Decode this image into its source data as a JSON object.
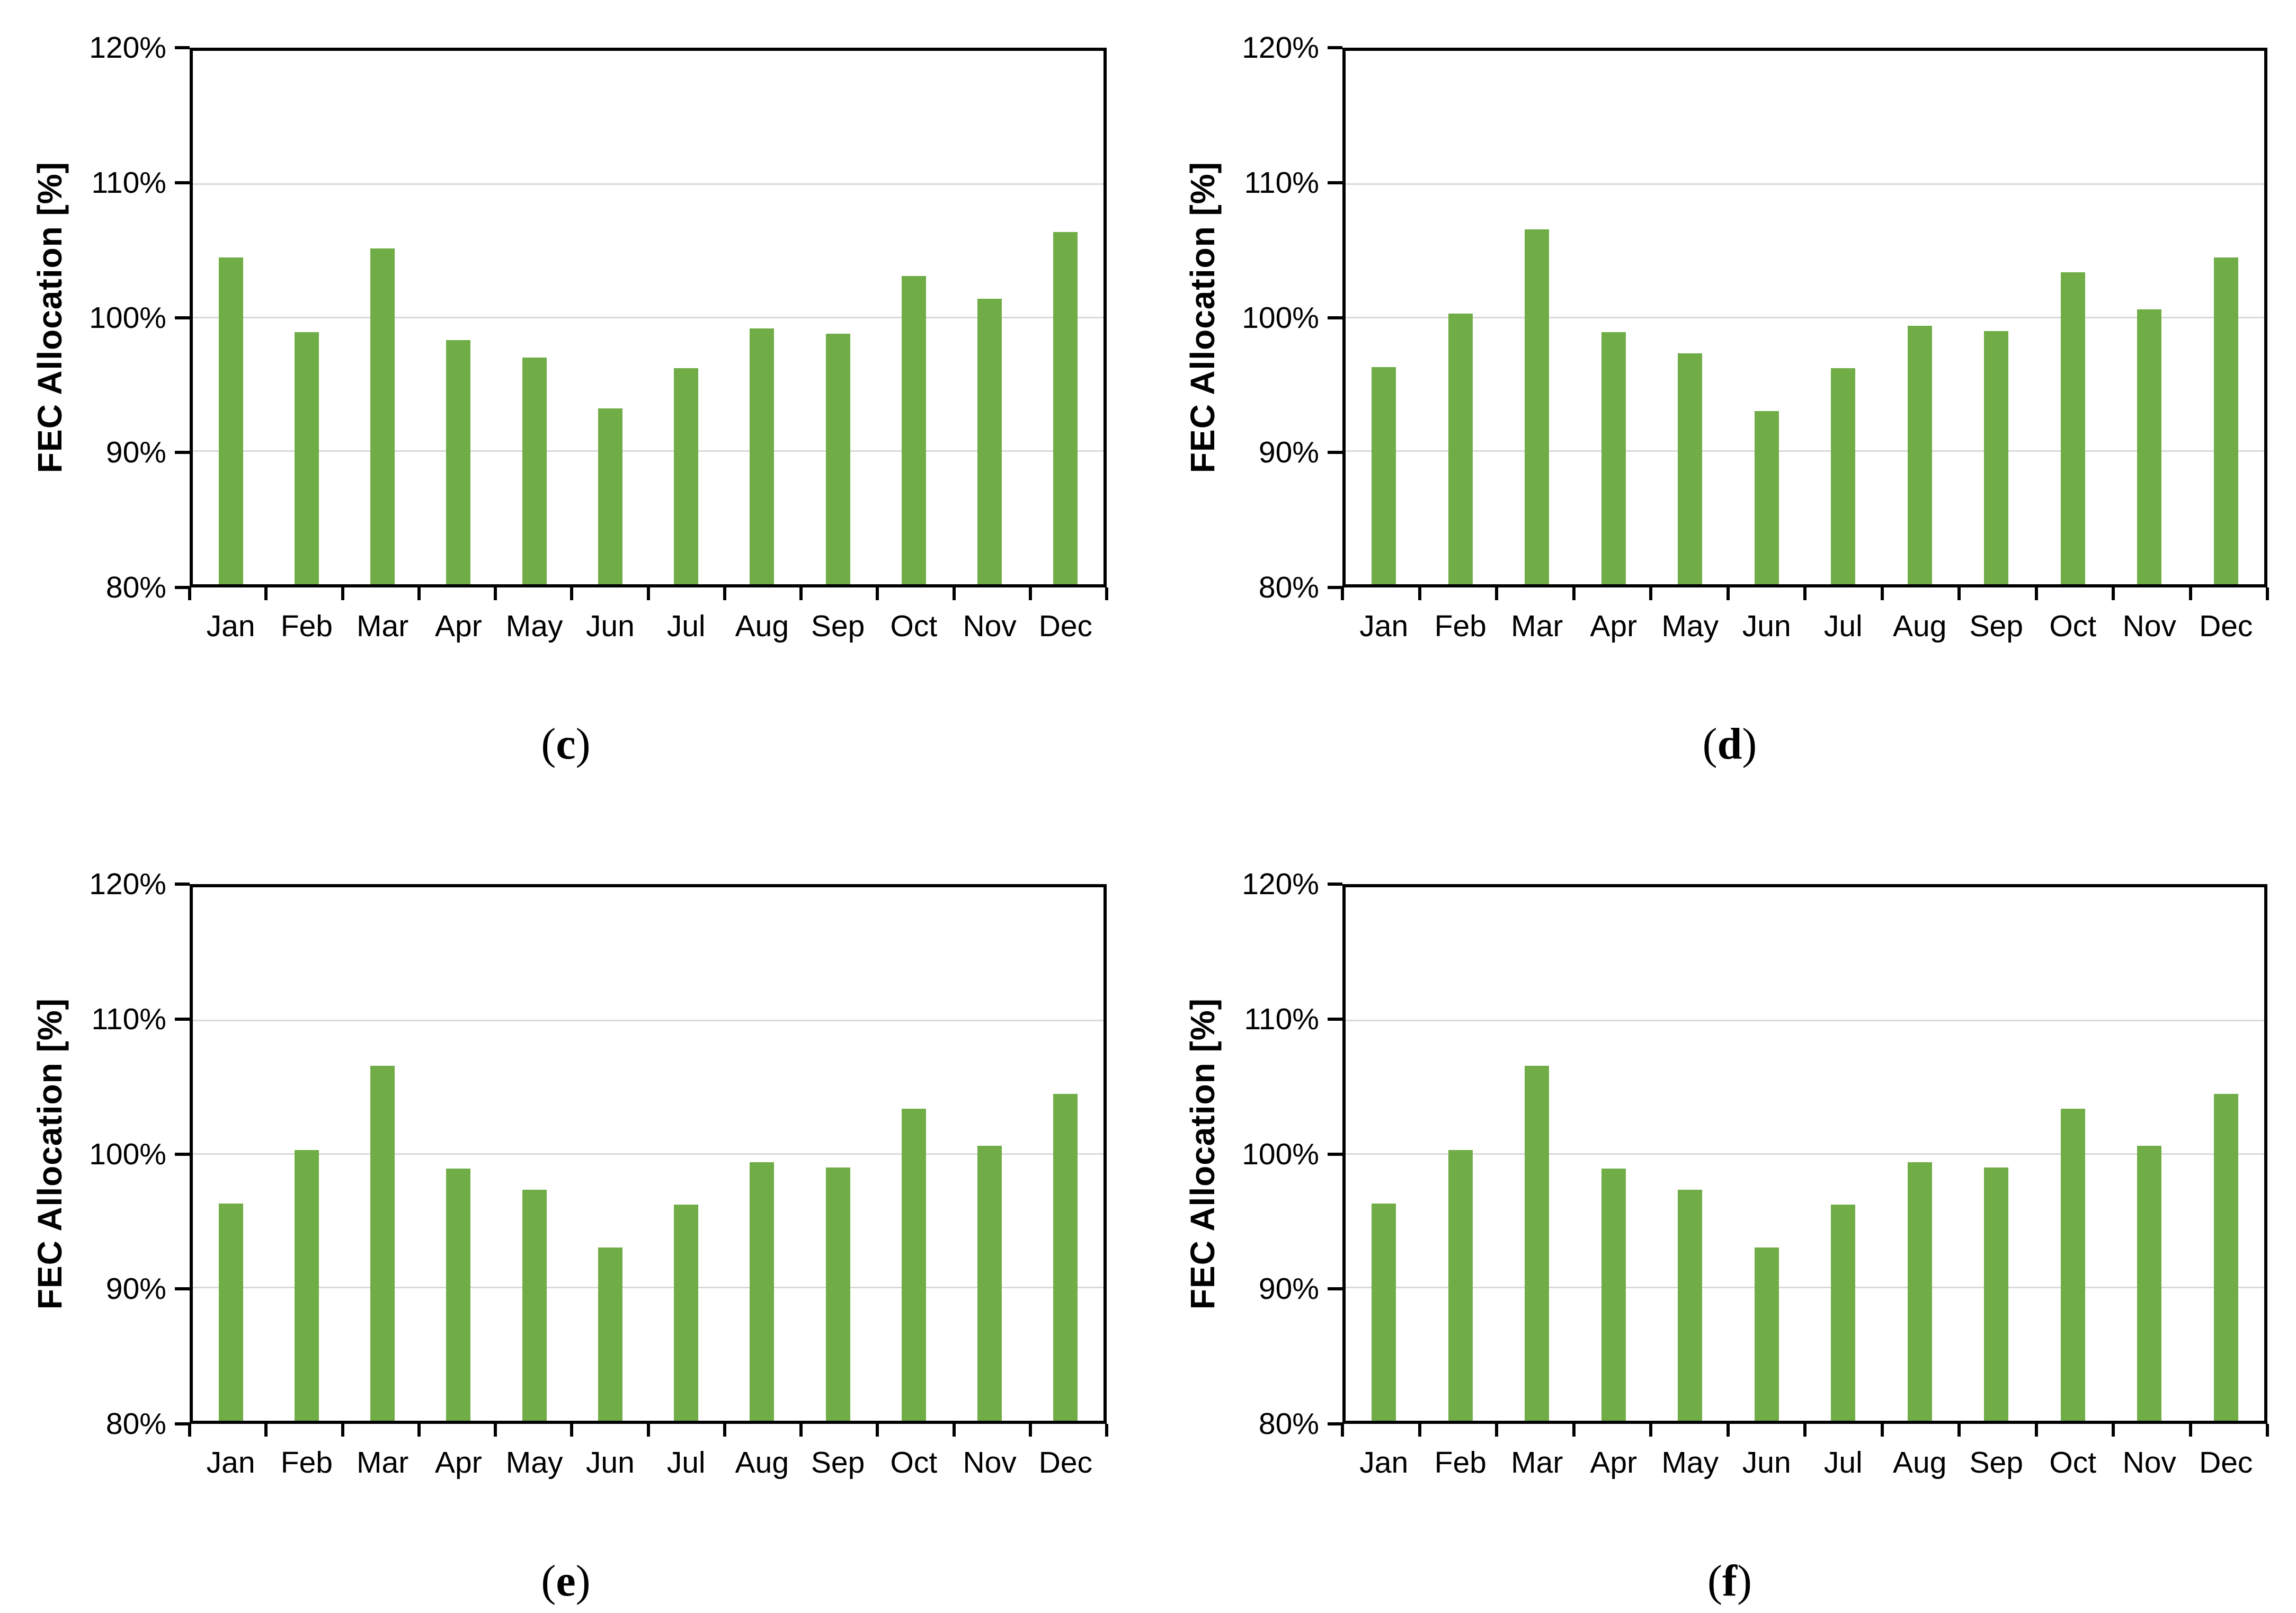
{
  "figure": {
    "background": "#ffffff",
    "bar_color": "#70AD47",
    "gridline_color": "#D9D9D9",
    "axis_color": "#000000",
    "text_color": "#000000"
  },
  "chart_data": [
    {
      "id": "c",
      "type": "bar",
      "panel_label": "(c)",
      "label_open": "(",
      "letter": "c",
      "label_close": ")",
      "title": "",
      "xlabel": "",
      "ylabel": "FEC Allocation [%]",
      "categories": [
        "Jan",
        "Feb",
        "Mar",
        "Apr",
        "May",
        "Jun",
        "Jul",
        "Aug",
        "Sep",
        "Oct",
        "Nov",
        "Dec"
      ],
      "values": [
        104.5,
        98.9,
        105.2,
        98.3,
        97.0,
        93.2,
        96.2,
        99.2,
        98.8,
        103.1,
        101.4,
        106.4
      ],
      "ylim": [
        80,
        120
      ],
      "ytick_step": 10,
      "ytick_labels": [
        "120%",
        "110%",
        "100%",
        "90%",
        "80%"
      ],
      "grid": true,
      "legend": false
    },
    {
      "id": "d",
      "type": "bar",
      "panel_label": "(d)",
      "label_open": "(",
      "letter": "d",
      "label_close": ")",
      "title": "",
      "xlabel": "",
      "ylabel": "FEC Allocation [%]",
      "categories": [
        "Jan",
        "Feb",
        "Mar",
        "Apr",
        "May",
        "Jun",
        "Jul",
        "Aug",
        "Sep",
        "Oct",
        "Nov",
        "Dec"
      ],
      "values": [
        96.3,
        100.3,
        106.6,
        98.9,
        97.3,
        93.0,
        96.2,
        99.4,
        99.0,
        103.4,
        100.6,
        104.5
      ],
      "ylim": [
        80,
        120
      ],
      "ytick_step": 10,
      "ytick_labels": [
        "120%",
        "110%",
        "100%",
        "90%",
        "80%"
      ],
      "grid": true,
      "legend": false
    },
    {
      "id": "e",
      "type": "bar",
      "panel_label": "(e)",
      "label_open": "(",
      "letter": "e",
      "label_close": ")",
      "title": "",
      "xlabel": "",
      "ylabel": "FEC Allocation [%]",
      "categories": [
        "Jan",
        "Feb",
        "Mar",
        "Apr",
        "May",
        "Jun",
        "Jul",
        "Aug",
        "Sep",
        "Oct",
        "Nov",
        "Dec"
      ],
      "values": [
        96.3,
        100.3,
        106.6,
        98.9,
        97.3,
        93.0,
        96.2,
        99.4,
        99.0,
        103.4,
        100.6,
        104.5
      ],
      "ylim": [
        80,
        120
      ],
      "ytick_step": 10,
      "ytick_labels": [
        "120%",
        "110%",
        "100%",
        "90%",
        "80%"
      ],
      "grid": true,
      "legend": false
    },
    {
      "id": "f",
      "type": "bar",
      "panel_label": "(f)",
      "label_open": "(",
      "letter": "f",
      "label_close": ")",
      "title": "",
      "xlabel": "",
      "ylabel": "FEC Allocation [%]",
      "categories": [
        "Jan",
        "Feb",
        "Mar",
        "Apr",
        "May",
        "Jun",
        "Jul",
        "Aug",
        "Sep",
        "Oct",
        "Nov",
        "Dec"
      ],
      "values": [
        96.3,
        100.3,
        106.6,
        98.9,
        97.3,
        93.0,
        96.2,
        99.4,
        99.0,
        103.4,
        100.6,
        104.5
      ],
      "ylim": [
        80,
        120
      ],
      "ytick_step": 10,
      "ytick_labels": [
        "120%",
        "110%",
        "100%",
        "90%",
        "80%"
      ],
      "grid": true,
      "legend": false
    }
  ]
}
